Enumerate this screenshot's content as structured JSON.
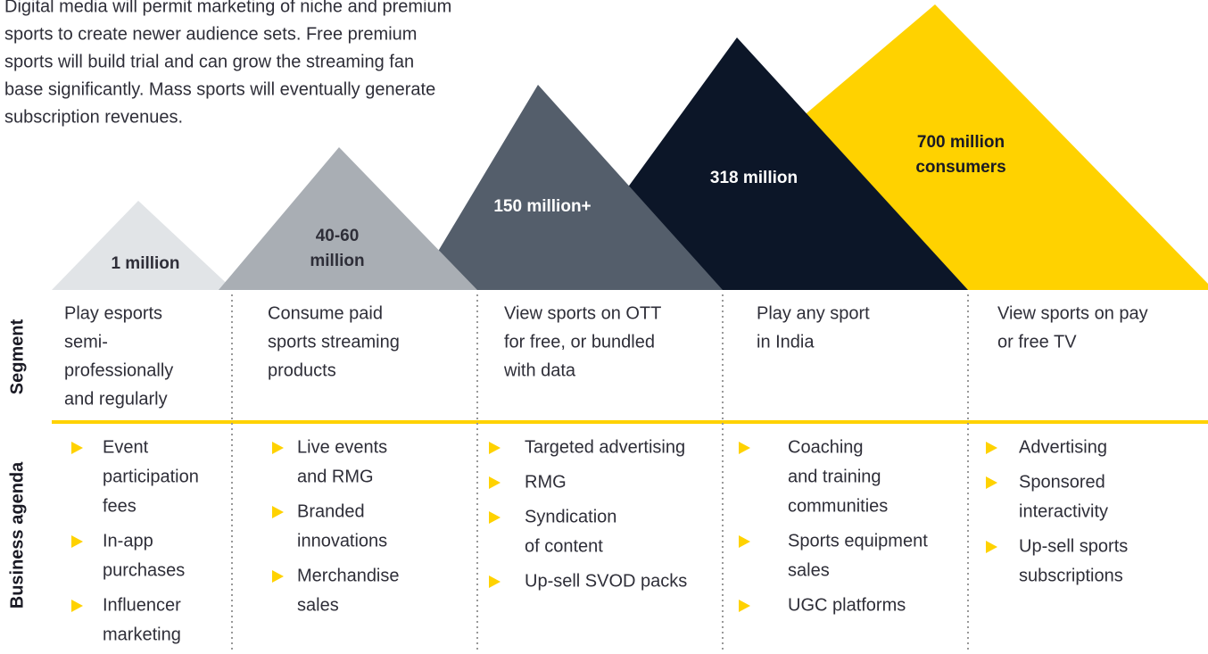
{
  "intro": [
    "Digital media will permit marketing of niche and premium",
    "sports to create newer audience sets. Free premium",
    "sports will build trial and can grow the streaming fan",
    "base significantly. Mass sports will eventually generate",
    "subscription revenues."
  ],
  "mountains": [
    {
      "label": [
        "1 million"
      ]
    },
    {
      "label": [
        "40-60",
        "million"
      ]
    },
    {
      "label": [
        "150 million+"
      ]
    },
    {
      "label": [
        "318 million"
      ]
    },
    {
      "label": [
        "700 million",
        "consumers"
      ]
    }
  ],
  "rows": [
    "Segment",
    "Business agenda"
  ],
  "columns": [
    {
      "segment": [
        "Play esports",
        "semi-",
        "professionally",
        "and regularly"
      ],
      "agenda": [
        [
          "Event",
          "participation",
          "fees"
        ],
        [
          "In-app",
          "purchases"
        ],
        [
          "Influencer",
          "marketing"
        ]
      ]
    },
    {
      "segment": [
        "Consume paid",
        "sports streaming",
        "products"
      ],
      "agenda": [
        [
          "Live events",
          "and RMG"
        ],
        [
          "Branded",
          "innovations"
        ],
        [
          "Merchandise",
          "sales"
        ]
      ]
    },
    {
      "segment": [
        "View sports on OTT",
        "for free, or bundled",
        "with data"
      ],
      "agenda": [
        [
          "Targeted advertising"
        ],
        [
          "RMG"
        ],
        [
          "Syndication",
          "of content"
        ],
        [
          "Up-sell SVOD packs"
        ]
      ]
    },
    {
      "segment": [
        "Play any sport",
        "in India"
      ],
      "agenda": [
        [
          "Coaching",
          "and training",
          "communities"
        ],
        [
          "Sports equipment",
          "sales"
        ],
        [
          "UGC platforms"
        ]
      ]
    },
    {
      "segment": [
        "View sports on pay",
        "or free TV"
      ],
      "agenda": [
        [
          "Advertising"
        ],
        [
          "Sponsored",
          "interactivity"
        ],
        [
          "Up-sell sports",
          "subscriptions"
        ]
      ]
    }
  ]
}
